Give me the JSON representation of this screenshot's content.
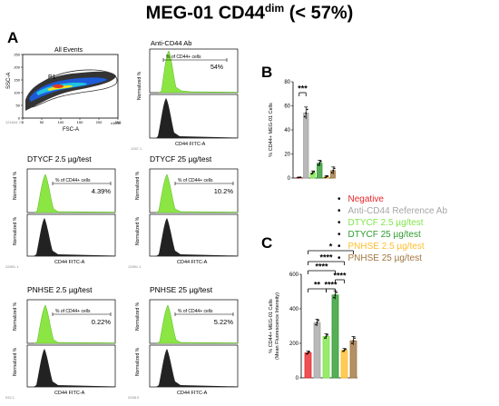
{
  "figure": {
    "title_main": "MEG-01 CD44",
    "title_sup": "dim",
    "title_tail": " (< 57%)",
    "panel_a": "A",
    "panel_b": "B",
    "panel_c": "C"
  },
  "flow": {
    "scatter": {
      "title": "All Events",
      "gate": "P1",
      "ylabel": "SSC-A",
      "xlabel": "FSC-A",
      "yticks": [
        "250",
        "200",
        "150",
        "100",
        "50",
        "0"
      ],
      "xticks": [
        "0",
        "50",
        "100",
        "150",
        "200",
        "250"
      ],
      "xunit": "x1000",
      "corner": "121844.70"
    },
    "reference": {
      "title": "Anti-CD44 Ab",
      "marker": "% of CD44+ cells",
      "percent": "54%",
      "ylabel": "Normalized %",
      "xlabel": "CD44 FITC-A",
      "corner": "1267.1"
    },
    "panels": [
      {
        "title": "DTYCF 2.5 µg/test",
        "marker": "% of CD44+ cells",
        "percent": "4.39%",
        "ylabel": "Normalized %",
        "xlabel": "CD44 FITC-A",
        "corner": "22851.1"
      },
      {
        "title": "DTYCF 25 µg/test",
        "marker": "% of CD44+ cells",
        "percent": "10.2%",
        "ylabel": "Normalized %",
        "xlabel": "CD44 FITC-A",
        "corner": "12891.1"
      },
      {
        "title": "PNHSE 2.5 µg/test",
        "marker": "% of CD44+ cells",
        "percent": "0.22%",
        "ylabel": "Normalized %",
        "xlabel": "CD44 FITC-A",
        "corner": "932.1"
      },
      {
        "title": "PNHSE 25 µg/test",
        "marker": "% of CD44+ cells",
        "percent": "5.22%",
        "ylabel": "Normalized %",
        "xlabel": "CD44 FITC-A",
        "corner": "2938.0"
      }
    ]
  },
  "legend": [
    {
      "label": "Negative",
      "color": "#e8262a"
    },
    {
      "label": "Anti-CD44 Reference Ab",
      "color": "#a6a6a6"
    },
    {
      "label": "DTYCF 2.5 µg/test",
      "color": "#7ee64a"
    },
    {
      "label": "DTYCF 25 µg/test",
      "color": "#2e9a2e"
    },
    {
      "label": "PNHSE 2.5 µg/test",
      "color": "#ffbe2e"
    },
    {
      "label": "PNHSE 25 µg/test",
      "color": "#a07640"
    }
  ],
  "chart_data": [
    {
      "id": "B",
      "type": "bar",
      "ylabel": "% CD44+ MEG-01 Cells",
      "ylim": [
        0,
        80
      ],
      "yticks": [
        0,
        20,
        40,
        60,
        80
      ],
      "categories": [
        "Negative",
        "Anti-CD44 Reference Ab",
        "DTYCF 2.5 µg/test",
        "DTYCF 25 µg/test",
        "PNHSE 2.5 µg/test",
        "PNHSE 25 µg/test"
      ],
      "values": [
        0.5,
        54,
        4.4,
        12.3,
        1,
        6.2
      ],
      "errors": [
        0.3,
        5,
        1.5,
        2.5,
        1,
        3
      ],
      "colors": [
        "#e8262a",
        "#a6a6a6",
        "#7ee64a",
        "#2e9a2e",
        "#ffbe2e",
        "#a07640"
      ],
      "significance": [
        {
          "from": 0,
          "to": 1,
          "label": "***"
        }
      ]
    },
    {
      "id": "C",
      "type": "bar",
      "ylabel": "% CD44+ MEG-01 Cells\n(Mean Fluorescence Intensity)",
      "ylim": [
        0,
        600
      ],
      "yticks": [
        0,
        200,
        400,
        600
      ],
      "categories": [
        "Negative",
        "Anti-CD44 Reference Ab",
        "DTYCF 2.5 µg/test",
        "DTYCF 25 µg/test",
        "PNHSE 2.5 µg/test",
        "PNHSE 25 µg/test"
      ],
      "values": [
        145,
        320,
        240,
        480,
        160,
        215
      ],
      "errors": [
        10,
        20,
        15,
        25,
        10,
        25
      ],
      "colors": [
        "#e8262a",
        "#a6a6a6",
        "#7ee64a",
        "#2e9a2e",
        "#ffbe2e",
        "#a07640"
      ],
      "significance": [
        {
          "from": 2,
          "to": 3,
          "label": "****"
        },
        {
          "from": 3,
          "to": 4,
          "label": "****"
        },
        {
          "from": 0,
          "to": 2,
          "label": "**"
        },
        {
          "from": 0,
          "to": 3,
          "label": "****"
        },
        {
          "from": 0,
          "to": 4,
          "label": "****"
        },
        {
          "from": 0,
          "to": 5,
          "label": "*"
        }
      ]
    }
  ]
}
